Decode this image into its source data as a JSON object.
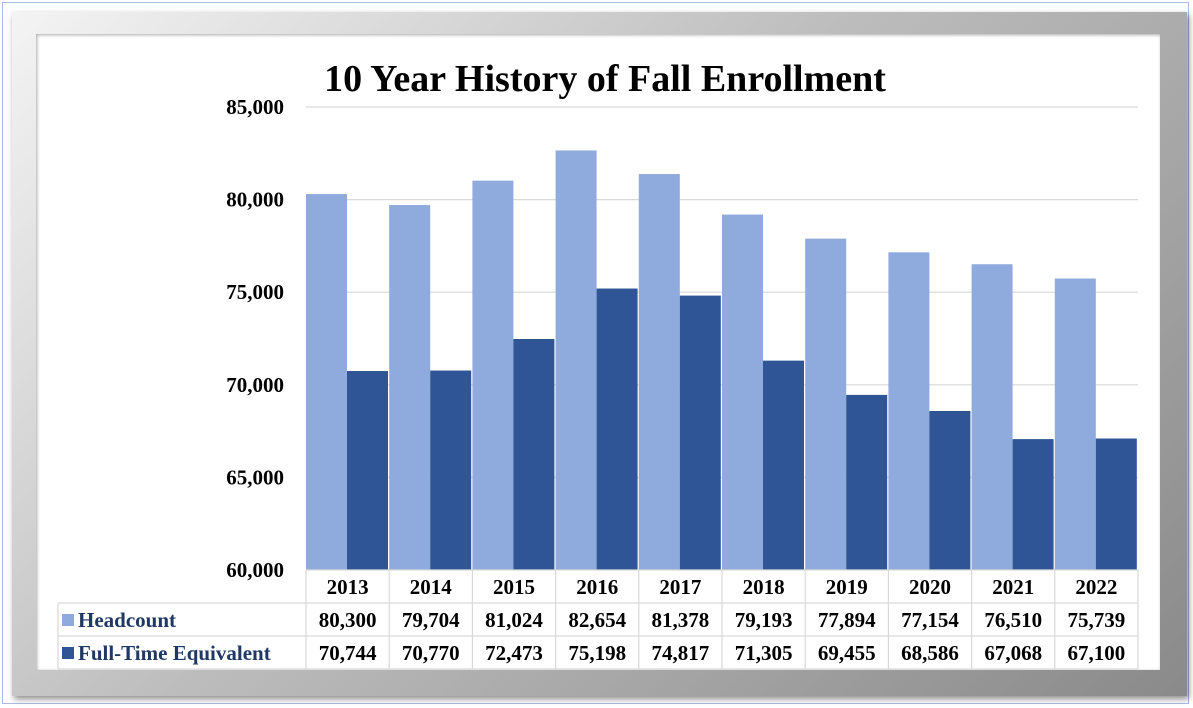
{
  "chart_data": {
    "type": "bar",
    "title": "10 Year History of Fall Enrollment",
    "categories": [
      "2013",
      "2014",
      "2015",
      "2016",
      "2017",
      "2018",
      "2019",
      "2020",
      "2021",
      "2022"
    ],
    "series": [
      {
        "name": "Headcount",
        "color": "#8faadc",
        "values": [
          80300,
          79704,
          81024,
          82654,
          81378,
          79193,
          77894,
          77154,
          76510,
          75739
        ],
        "labels": [
          "80,300",
          "79,704",
          "81,024",
          "82,654",
          "81,378",
          "79,193",
          "77,894",
          "77,154",
          "76,510",
          "75,739"
        ]
      },
      {
        "name": "Full-Time Equivalent",
        "color": "#2f5597",
        "values": [
          70744,
          70770,
          72473,
          75198,
          74817,
          71305,
          69455,
          68586,
          67068,
          67100
        ],
        "labels": [
          "70,744",
          "70,770",
          "72,473",
          "75,198",
          "74,817",
          "71,305",
          "69,455",
          "68,586",
          "67,068",
          "67,100"
        ]
      }
    ],
    "ylim": [
      60000,
      85000
    ],
    "yticks": [
      60000,
      65000,
      70000,
      75000,
      80000,
      85000
    ],
    "ytick_labels": [
      "60,000",
      "65,000",
      "70,000",
      "75,000",
      "80,000",
      "85,000"
    ],
    "grid": true,
    "legend": "data-table"
  }
}
